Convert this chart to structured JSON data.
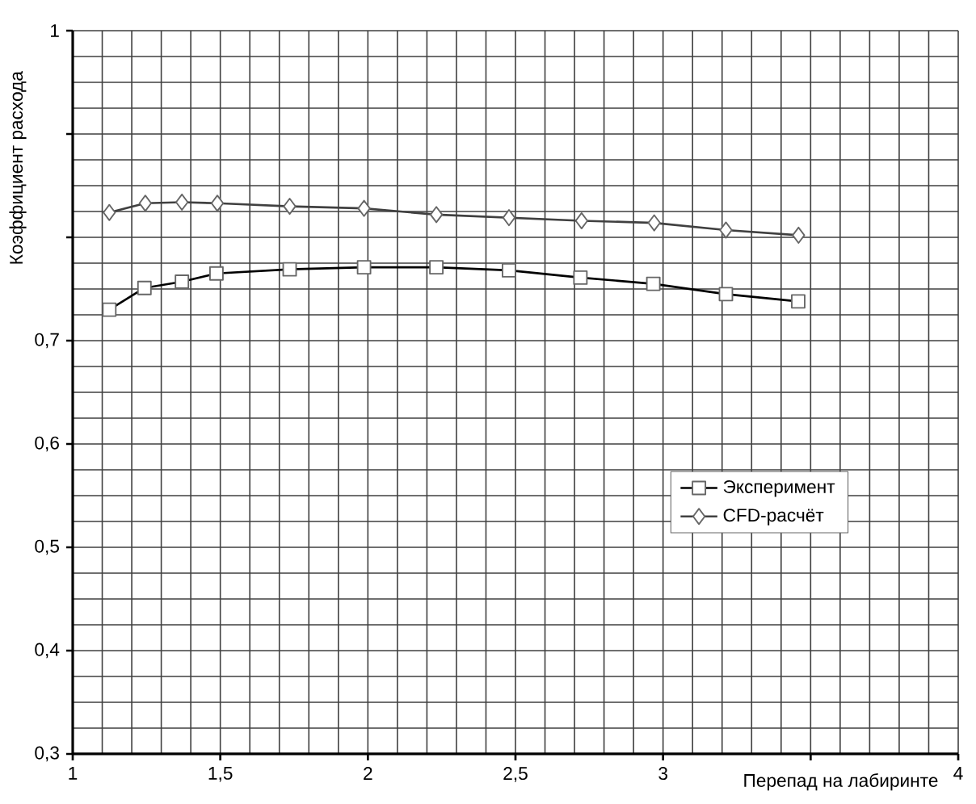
{
  "chart_data": {
    "type": "line",
    "xlabel": "Перепад на лабиринте",
    "ylabel": "Коэффициент расхода",
    "xlim": [
      1,
      4
    ],
    "ylim": [
      0.3,
      1
    ],
    "xticks": [
      1,
      {
        "value": 1.5,
        "label": "1,5"
      },
      2,
      {
        "value": 2.5,
        "label": "2,5"
      },
      3,
      {
        "value": 3.5,
        "label": null
      },
      4
    ],
    "yticks": [
      {
        "value": 0.3,
        "label": "0,3"
      },
      {
        "value": 0.4,
        "label": "0,4"
      },
      {
        "value": 0.5,
        "label": "0,5"
      },
      {
        "value": 0.6,
        "label": "0,6"
      },
      {
        "value": 0.7,
        "label": "0,7"
      },
      {
        "value": 0.8,
        "label": null
      },
      {
        "value": 0.9,
        "label": null
      },
      1
    ],
    "grid": true,
    "legend": "right",
    "line_style": "solid",
    "series": [
      {
        "name": "Эксперимент",
        "color": "#000000",
        "marker": "square",
        "x": [
          1.124,
          1.243,
          1.37,
          1.487,
          1.735,
          1.987,
          2.232,
          2.478,
          2.72,
          2.967,
          3.213,
          3.458
        ],
        "values": [
          0.73,
          0.751,
          0.757,
          0.765,
          0.769,
          0.771,
          0.771,
          0.768,
          0.761,
          0.755,
          0.745,
          0.738
        ]
      },
      {
        "name": "CFD-расчёт",
        "color": "#404040",
        "marker": "diamond",
        "x": [
          1.124,
          1.246,
          1.37,
          1.49,
          1.735,
          1.987,
          2.232,
          2.478,
          2.724,
          2.97,
          3.213,
          3.459
        ],
        "values": [
          0.824,
          0.833,
          0.834,
          0.833,
          0.83,
          0.828,
          0.822,
          0.819,
          0.816,
          0.814,
          0.807,
          0.802
        ]
      }
    ]
  }
}
